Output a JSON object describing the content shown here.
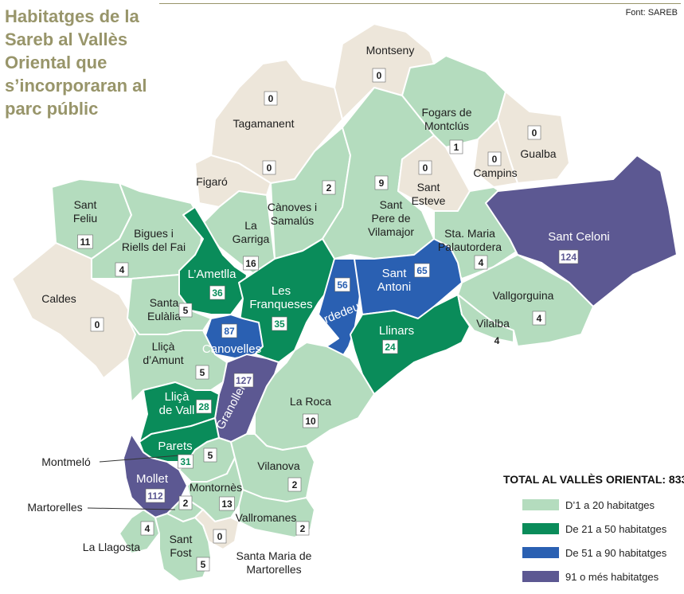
{
  "title": "Habitatges de la Sareb al Vallès Oriental que s’incorporaran al parc públic",
  "source": "Font: SAREB",
  "total_label": "TOTAL AL VALLÈS ORIENTAL: 833",
  "legend": [
    {
      "label": "D’1 a 20 habitatges",
      "color": "#b4dcbe"
    },
    {
      "label": "De 21 a 50 habitatges",
      "color": "#0a8c5a"
    },
    {
      "label": "De 51 a 90 habitatges",
      "color": "#2a60b2"
    },
    {
      "label": "91 o més habitatges",
      "color": "#5c5892"
    }
  ],
  "municipalities": [
    {
      "name": "Montseny",
      "value": "0"
    },
    {
      "name": "Tagamanent",
      "value": "0"
    },
    {
      "name": "Fogars de Montclús",
      "value": "1"
    },
    {
      "name": "Gualba",
      "value": "0"
    },
    {
      "name": "Campins",
      "value": "0"
    },
    {
      "name": "Figaró",
      "value": "0"
    },
    {
      "name": "Cànoves i Samalús",
      "value": "2"
    },
    {
      "name": "Sant Pere de Vilamajor",
      "value": "9"
    },
    {
      "name": "Sant Esteve",
      "value": "0"
    },
    {
      "name": "Sant Feliu",
      "value": "11"
    },
    {
      "name": "Bigues i Riells del Fai",
      "value": "4"
    },
    {
      "name": "La Garriga",
      "value": "16"
    },
    {
      "name": "Sta. Maria Palautordera",
      "value": "4"
    },
    {
      "name": "Sant Celoni",
      "value": "124"
    },
    {
      "name": "L'Ametlla",
      "value": "36"
    },
    {
      "name": "Les Franqueses",
      "value": "35"
    },
    {
      "name": "Cardedeu",
      "value": "56"
    },
    {
      "name": "Sant Antoni",
      "value": "65"
    },
    {
      "name": "Caldes",
      "value": "0"
    },
    {
      "name": "Santa Eulàlia",
      "value": "5"
    },
    {
      "name": "Vallgorguina",
      "value": "4"
    },
    {
      "name": "Canovelles",
      "value": "87"
    },
    {
      "name": "Llinars",
      "value": "24"
    },
    {
      "name": "Vilalba",
      "value": "4"
    },
    {
      "name": "Lliçà d'Amunt",
      "value": "5"
    },
    {
      "name": "Granollers",
      "value": "127"
    },
    {
      "name": "La Roca",
      "value": "10"
    },
    {
      "name": "Lliçà de Vall",
      "value": "28"
    },
    {
      "name": "Parets",
      "value": "31"
    },
    {
      "name": "Montmeló",
      "value": "5"
    },
    {
      "name": "Vilanova",
      "value": "2"
    },
    {
      "name": "Mollet",
      "value": "112"
    },
    {
      "name": "Montornès",
      "value": "13"
    },
    {
      "name": "Martorelles",
      "value": "2"
    },
    {
      "name": "Vallromanes",
      "value": "2"
    },
    {
      "name": "La Llagosta",
      "value": "4"
    },
    {
      "name": "Sant Fost",
      "value": "5"
    },
    {
      "name": "Santa Maria de Martorelles",
      "value": "0"
    }
  ]
}
